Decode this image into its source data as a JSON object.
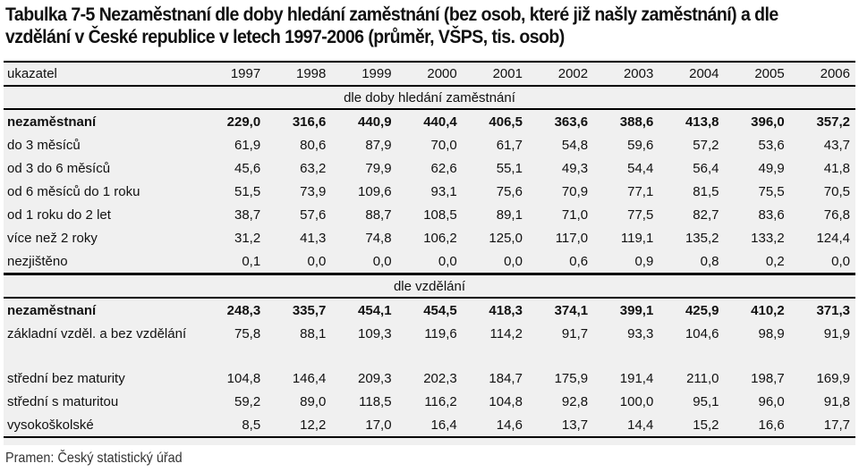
{
  "title": {
    "line1": "Tabulka 7-5 Nezaměstnaní dle doby hledání zaměstnání (bez osob, které již našly zaměstnání) a dle",
    "line2": "vzdělání v České republice v letech 1997-2006 (průměr, VŠPS, tis. osob)"
  },
  "table": {
    "header": [
      "ukazatel",
      "1997",
      "1998",
      "1999",
      "2000",
      "2001",
      "2002",
      "2003",
      "2004",
      "2005",
      "2006"
    ],
    "section1": {
      "label": "dle doby hledání zaměstnání",
      "rows": [
        {
          "label": "nezaměstnaní",
          "values": [
            "229,0",
            "316,6",
            "440,9",
            "440,4",
            "406,5",
            "363,6",
            "388,6",
            "413,8",
            "396,0",
            "357,2"
          ]
        },
        {
          "label": "do 3 měsíců",
          "values": [
            "61,9",
            "80,6",
            "87,9",
            "70,0",
            "61,7",
            "54,8",
            "59,6",
            "57,2",
            "53,6",
            "43,7"
          ]
        },
        {
          "label": "od 3 do 6 měsíců",
          "values": [
            "45,6",
            "63,2",
            "79,9",
            "62,6",
            "55,1",
            "49,3",
            "54,4",
            "56,4",
            "49,9",
            "41,8"
          ]
        },
        {
          "label": "od 6 měsíců do 1 roku",
          "values": [
            "51,5",
            "73,9",
            "109,6",
            "93,1",
            "75,6",
            "70,9",
            "77,1",
            "81,5",
            "75,5",
            "70,5"
          ]
        },
        {
          "label": "od 1 roku do 2 let",
          "values": [
            "38,7",
            "57,6",
            "88,7",
            "108,5",
            "89,1",
            "71,0",
            "77,5",
            "82,7",
            "83,6",
            "76,8"
          ]
        },
        {
          "label": "více než 2 roky",
          "values": [
            "31,2",
            "41,3",
            "74,8",
            "106,2",
            "125,0",
            "117,0",
            "119,1",
            "135,2",
            "133,2",
            "124,4"
          ]
        },
        {
          "label": "nezjištěno",
          "values": [
            "0,1",
            "0,0",
            "0,0",
            "0,0",
            "0,0",
            "0,6",
            "0,9",
            "0,8",
            "0,2",
            "0,0"
          ]
        }
      ]
    },
    "section2": {
      "label": "dle vzdělání",
      "rows": [
        {
          "label": "nezaměstnaní",
          "values": [
            "248,3",
            "335,7",
            "454,1",
            "454,5",
            "418,3",
            "374,1",
            "399,1",
            "425,9",
            "410,2",
            "371,3"
          ]
        },
        {
          "label": "základní vzděl. a bez vzdělání",
          "values": [
            "75,8",
            "88,1",
            "109,3",
            "119,6",
            "114,2",
            "91,7",
            "93,3",
            "104,6",
            "98,9",
            "91,9"
          ]
        },
        {
          "label": "střední bez maturity",
          "values": [
            "104,8",
            "146,4",
            "209,3",
            "202,3",
            "184,7",
            "175,9",
            "191,4",
            "211,0",
            "198,7",
            "169,9"
          ]
        },
        {
          "label": "střední s maturitou",
          "values": [
            "59,2",
            "89,0",
            "118,5",
            "116,2",
            "104,8",
            "92,8",
            "100,0",
            "95,1",
            "96,0",
            "91,8"
          ]
        },
        {
          "label": "vysokoškolské",
          "values": [
            "8,5",
            "12,2",
            "17,0",
            "16,4",
            "14,6",
            "13,7",
            "14,4",
            "15,2",
            "16,6",
            "17,7"
          ]
        }
      ]
    }
  },
  "source": "Pramen: Český statistický úřad"
}
